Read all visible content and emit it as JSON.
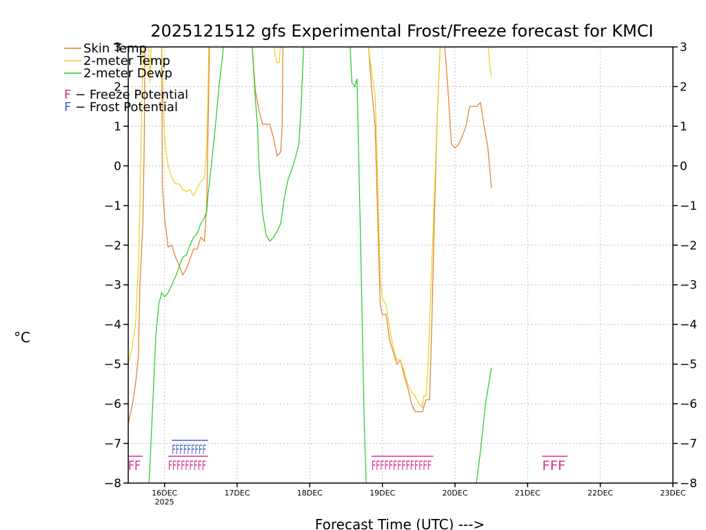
{
  "chart_data": {
    "type": "line",
    "title": "2025121512 gfs Experimental Frost/Freeze forecast for KMCI",
    "xlabel": "Forecast Time (UTC) --->",
    "ylabel": "°C",
    "ylim": [
      -8,
      3
    ],
    "xlim_days": [
      15.5,
      23.0
    ],
    "y_ticks": [
      -8,
      -7,
      -6,
      -5,
      -4,
      -3,
      -2,
      -1,
      0,
      1,
      2,
      3
    ],
    "y_tick_labels": [
      "−8",
      "−7",
      "−6",
      "−5",
      "−4",
      "−3",
      "−2",
      "−1",
      "0",
      "1",
      "2",
      "3"
    ],
    "x_ticks": [
      {
        "day": 16,
        "label": "16DEC",
        "sublabel": "2025"
      },
      {
        "day": 17,
        "label": "17DEC"
      },
      {
        "day": 18,
        "label": "18DEC"
      },
      {
        "day": 19,
        "label": "19DEC"
      },
      {
        "day": 20,
        "label": "20DEC"
      },
      {
        "day": 21,
        "label": "21DEC"
      },
      {
        "day": 22,
        "label": "22DEC"
      },
      {
        "day": 23,
        "label": "23DEC"
      }
    ],
    "grid": true,
    "legend": [
      {
        "name": "Skin Temp",
        "color": "#e07a2a"
      },
      {
        "name": "2-meter Temp",
        "color": "#e8d020"
      },
      {
        "name": "2-meter Dewp",
        "color": "#22c822"
      }
    ],
    "markers_legend": [
      {
        "letter": "F",
        "text": " − Freeze Potential",
        "color": "#d6318a"
      },
      {
        "letter": "F",
        "text": " − Frost Potential",
        "color": "#4060c8"
      }
    ],
    "series": [
      {
        "name": "Skin Temp",
        "color": "#e07a2a",
        "points": [
          [
            15.5,
            -6.5
          ],
          [
            15.56,
            -6.0
          ],
          [
            15.6,
            -5.5
          ],
          [
            15.64,
            -4.8
          ],
          [
            15.66,
            -3.0
          ],
          [
            15.7,
            -1.5
          ],
          [
            15.72,
            0.5
          ],
          [
            15.73,
            3.2
          ],
          [
            15.96,
            3.2
          ],
          [
            15.97,
            -0.5
          ],
          [
            16.0,
            -1.3
          ],
          [
            16.05,
            -2.05
          ],
          [
            16.1,
            -2.0
          ],
          [
            16.15,
            -2.3
          ],
          [
            16.2,
            -2.5
          ],
          [
            16.25,
            -2.75
          ],
          [
            16.3,
            -2.6
          ],
          [
            16.35,
            -2.35
          ],
          [
            16.4,
            -2.1
          ],
          [
            16.45,
            -2.1
          ],
          [
            16.5,
            -1.8
          ],
          [
            16.55,
            -1.9
          ],
          [
            16.58,
            -1.0
          ],
          [
            16.6,
            1.0
          ],
          [
            16.62,
            3.2
          ],
          [
            17.2,
            3.2
          ],
          [
            17.25,
            1.9
          ],
          [
            17.3,
            1.4
          ],
          [
            17.35,
            1.05
          ],
          [
            17.45,
            1.05
          ],
          [
            17.5,
            0.7
          ],
          [
            17.55,
            0.25
          ],
          [
            17.6,
            0.35
          ],
          [
            17.62,
            1.0
          ],
          [
            17.63,
            3.2
          ],
          [
            18.8,
            3.2
          ],
          [
            18.85,
            2.0
          ],
          [
            18.9,
            1.0
          ],
          [
            18.93,
            -1.0
          ],
          [
            18.97,
            -3.5
          ],
          [
            19.0,
            -3.75
          ],
          [
            19.05,
            -3.75
          ],
          [
            19.1,
            -4.4
          ],
          [
            19.15,
            -4.7
          ],
          [
            19.2,
            -5.0
          ],
          [
            19.25,
            -4.9
          ],
          [
            19.3,
            -5.3
          ],
          [
            19.35,
            -5.6
          ],
          [
            19.4,
            -6.0
          ],
          [
            19.45,
            -6.2
          ],
          [
            19.5,
            -6.2
          ],
          [
            19.55,
            -6.2
          ],
          [
            19.6,
            -5.9
          ],
          [
            19.65,
            -5.9
          ],
          [
            19.68,
            -4.0
          ],
          [
            19.72,
            -1.0
          ],
          [
            19.76,
            1.5
          ],
          [
            19.8,
            3.2
          ],
          [
            19.85,
            3.2
          ],
          [
            19.9,
            2.0
          ],
          [
            19.95,
            0.55
          ],
          [
            20.0,
            0.45
          ],
          [
            20.05,
            0.55
          ],
          [
            20.1,
            0.75
          ],
          [
            20.15,
            1.0
          ],
          [
            20.2,
            1.5
          ],
          [
            20.3,
            1.5
          ],
          [
            20.35,
            1.6
          ],
          [
            20.4,
            1.0
          ],
          [
            20.45,
            0.5
          ],
          [
            20.5,
            -0.55
          ]
        ]
      },
      {
        "name": "2-meter Temp",
        "color": "#e8d020",
        "points": [
          [
            15.5,
            -5.0
          ],
          [
            15.55,
            -4.6
          ],
          [
            15.6,
            -4.0
          ],
          [
            15.64,
            -2.5
          ],
          [
            15.66,
            -1.0
          ],
          [
            15.68,
            1.0
          ],
          [
            15.7,
            2.5
          ],
          [
            15.71,
            3.2
          ],
          [
            15.78,
            3.2
          ],
          [
            15.79,
            2.5
          ],
          [
            15.8,
            2.1
          ],
          [
            15.82,
            3.2
          ],
          [
            15.96,
            3.2
          ],
          [
            15.98,
            1.5
          ],
          [
            16.0,
            0.7
          ],
          [
            16.05,
            0.0
          ],
          [
            16.1,
            -0.3
          ],
          [
            16.15,
            -0.45
          ],
          [
            16.2,
            -0.45
          ],
          [
            16.25,
            -0.6
          ],
          [
            16.3,
            -0.65
          ],
          [
            16.35,
            -0.6
          ],
          [
            16.4,
            -0.75
          ],
          [
            16.45,
            -0.55
          ],
          [
            16.5,
            -0.4
          ],
          [
            16.55,
            -0.3
          ],
          [
            16.58,
            0.5
          ],
          [
            16.6,
            2.0
          ],
          [
            16.61,
            3.2
          ],
          [
            17.5,
            3.2
          ],
          [
            17.52,
            2.8
          ],
          [
            17.55,
            2.6
          ],
          [
            17.58,
            2.6
          ],
          [
            17.6,
            3.2
          ],
          [
            18.8,
            3.2
          ],
          [
            18.82,
            2.8
          ],
          [
            18.85,
            2.4
          ],
          [
            18.9,
            1.8
          ],
          [
            18.93,
            0.0
          ],
          [
            18.97,
            -2.8
          ],
          [
            19.0,
            -3.35
          ],
          [
            19.05,
            -3.5
          ],
          [
            19.1,
            -4.1
          ],
          [
            19.15,
            -4.6
          ],
          [
            19.2,
            -4.9
          ],
          [
            19.25,
            -4.9
          ],
          [
            19.3,
            -5.2
          ],
          [
            19.35,
            -5.5
          ],
          [
            19.4,
            -5.7
          ],
          [
            19.45,
            -5.8
          ],
          [
            19.5,
            -6.0
          ],
          [
            19.55,
            -6.1
          ],
          [
            19.57,
            -5.8
          ],
          [
            19.6,
            -5.8
          ],
          [
            19.62,
            -5.3
          ],
          [
            19.65,
            -4.0
          ],
          [
            19.7,
            -1.5
          ],
          [
            19.75,
            1.0
          ],
          [
            19.8,
            3.2
          ],
          [
            20.45,
            3.2
          ],
          [
            20.48,
            2.5
          ],
          [
            20.5,
            2.25
          ]
        ]
      },
      {
        "name": "2-meter Dewp",
        "color": "#22c822",
        "points": [
          [
            15.78,
            -8.2
          ],
          [
            15.8,
            -7.5
          ],
          [
            15.85,
            -5.5
          ],
          [
            15.88,
            -4.3
          ],
          [
            15.92,
            -3.5
          ],
          [
            15.96,
            -3.2
          ],
          [
            16.0,
            -3.3
          ],
          [
            16.05,
            -3.2
          ],
          [
            16.1,
            -3.0
          ],
          [
            16.15,
            -2.8
          ],
          [
            16.2,
            -2.55
          ],
          [
            16.25,
            -2.3
          ],
          [
            16.3,
            -2.25
          ],
          [
            16.35,
            -2.0
          ],
          [
            16.4,
            -1.8
          ],
          [
            16.45,
            -1.7
          ],
          [
            16.5,
            -1.45
          ],
          [
            16.55,
            -1.3
          ],
          [
            16.58,
            -1.15
          ],
          [
            16.6,
            -0.7
          ],
          [
            16.65,
            0.1
          ],
          [
            16.7,
            1.0
          ],
          [
            16.75,
            2.0
          ],
          [
            16.8,
            2.8
          ],
          [
            16.82,
            3.2
          ],
          [
            17.2,
            3.2
          ],
          [
            17.25,
            1.7
          ],
          [
            17.28,
            1.0
          ],
          [
            17.3,
            0.0
          ],
          [
            17.35,
            -1.2
          ],
          [
            17.4,
            -1.75
          ],
          [
            17.45,
            -1.9
          ],
          [
            17.5,
            -1.8
          ],
          [
            17.55,
            -1.65
          ],
          [
            17.6,
            -1.45
          ],
          [
            17.65,
            -0.8
          ],
          [
            17.7,
            -0.35
          ],
          [
            17.75,
            -0.1
          ],
          [
            17.8,
            0.2
          ],
          [
            17.85,
            0.55
          ],
          [
            17.88,
            1.5
          ],
          [
            17.92,
            3.2
          ],
          [
            18.55,
            3.2
          ],
          [
            18.58,
            2.1
          ],
          [
            18.62,
            2.0
          ],
          [
            18.65,
            2.2
          ],
          [
            18.7,
            -2.0
          ],
          [
            18.75,
            -6.5
          ],
          [
            18.78,
            -8.2
          ]
        ]
      },
      {
        "name": "2-meter Dewp (tail)",
        "color": "#22c822",
        "points": [
          [
            20.28,
            -8.2
          ],
          [
            20.35,
            -7.2
          ],
          [
            20.42,
            -6.0
          ],
          [
            20.5,
            -5.1
          ]
        ]
      }
    ],
    "freeze_markers": [
      {
        "start": 15.5,
        "end": 15.7,
        "row": "freeze",
        "letters": "FF",
        "color": "#d6318a"
      },
      {
        "start": 16.05,
        "end": 16.6,
        "row": "freeze",
        "letters": "FFFFFFFFF",
        "color": "#d6318a"
      },
      {
        "start": 18.85,
        "end": 19.7,
        "row": "freeze",
        "letters": "FFFFFFFFFFFFFF",
        "color": "#d6318a"
      },
      {
        "start": 21.2,
        "end": 21.55,
        "row": "freeze",
        "letters": "FFF",
        "color": "#d6318a"
      }
    ],
    "frost_markers": [
      {
        "start": 16.1,
        "end": 16.6,
        "row": "frost",
        "letters": "FFFFFFFFF",
        "color": "#4060c8"
      }
    ]
  }
}
